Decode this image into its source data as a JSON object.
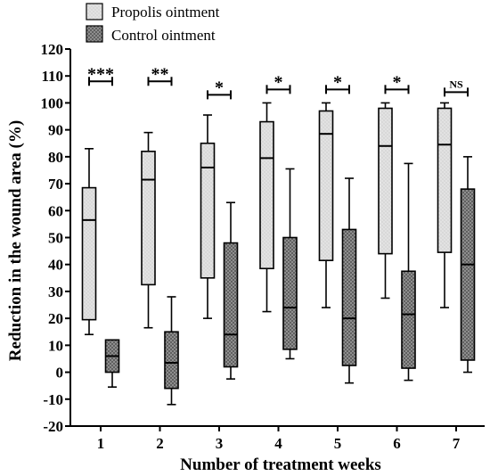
{
  "chart_data": {
    "type": "box",
    "xlabel": "Number of treatment weeks",
    "ylabel": "Reduction in the wound area (%)",
    "ylim": [
      -20,
      120
    ],
    "yticks": [
      -20,
      -10,
      0,
      10,
      20,
      30,
      40,
      50,
      60,
      70,
      80,
      90,
      100,
      110,
      120
    ],
    "categories": [
      "1",
      "2",
      "3",
      "4",
      "5",
      "6",
      "7"
    ],
    "legend_position": "top-left",
    "series": [
      {
        "name": "Propolis ointment",
        "fill": "#e0e0e0",
        "pattern": "dots-light",
        "boxes": [
          {
            "min": 14,
            "q1": 19.5,
            "median": 56.5,
            "q3": 68.5,
            "max": 83
          },
          {
            "min": 16.5,
            "q1": 32.5,
            "median": 71.5,
            "q3": 82,
            "max": 89
          },
          {
            "min": 20,
            "q1": 35,
            "median": 76,
            "q3": 85,
            "max": 95.5
          },
          {
            "min": 22.5,
            "q1": 38.5,
            "median": 79.5,
            "q3": 93,
            "max": 100
          },
          {
            "min": 24,
            "q1": 41.5,
            "median": 88.5,
            "q3": 97,
            "max": 100
          },
          {
            "min": 27.5,
            "q1": 44,
            "median": 84,
            "q3": 98,
            "max": 100
          },
          {
            "min": 24,
            "q1": 44.5,
            "median": 84.5,
            "q3": 98,
            "max": 100
          }
        ]
      },
      {
        "name": "Control ointment",
        "fill": "#8c8c8c",
        "pattern": "crosshatch-dark",
        "boxes": [
          {
            "min": -5.5,
            "q1": 0,
            "median": 6,
            "q3": 12,
            "max": 12
          },
          {
            "min": -12,
            "q1": -6,
            "median": 3.5,
            "q3": 15,
            "max": 28
          },
          {
            "min": -2.5,
            "q1": 2,
            "median": 14,
            "q3": 48,
            "max": 63
          },
          {
            "min": 5,
            "q1": 8.5,
            "median": 24,
            "q3": 50,
            "max": 75.5
          },
          {
            "min": -4,
            "q1": 2.5,
            "median": 20,
            "q3": 53,
            "max": 72
          },
          {
            "min": -3,
            "q1": 1.5,
            "median": 21.5,
            "q3": 37.5,
            "max": 77.5
          },
          {
            "min": 0,
            "q1": 4.5,
            "median": 40,
            "q3": 68,
            "max": 80
          }
        ]
      }
    ],
    "significance": [
      {
        "category": "1",
        "label": "***",
        "y": 108
      },
      {
        "category": "2",
        "label": "**",
        "y": 108
      },
      {
        "category": "3",
        "label": "*",
        "y": 103
      },
      {
        "category": "4",
        "label": "*",
        "y": 105
      },
      {
        "category": "5",
        "label": "*",
        "y": 105
      },
      {
        "category": "6",
        "label": "*",
        "y": 105
      },
      {
        "category": "7",
        "label": "NS",
        "y": 104
      }
    ]
  }
}
